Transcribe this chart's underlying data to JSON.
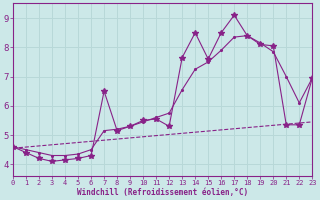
{
  "xlabel": "Windchill (Refroidissement éolien,°C)",
  "bg_color": "#cce8e8",
  "grid_color": "#aacccc",
  "line_color": "#882288",
  "xlim": [
    0,
    23
  ],
  "ylim": [
    3.6,
    9.5
  ],
  "xticks": [
    0,
    1,
    2,
    3,
    4,
    5,
    6,
    7,
    8,
    9,
    10,
    11,
    12,
    13,
    14,
    15,
    16,
    17,
    18,
    19,
    20,
    21,
    22,
    23
  ],
  "yticks": [
    4,
    5,
    6,
    7,
    8,
    9
  ],
  "hours": [
    0,
    1,
    2,
    3,
    4,
    5,
    6,
    7,
    8,
    9,
    10,
    11,
    12,
    13,
    14,
    15,
    16,
    17,
    18,
    19,
    20,
    21,
    22,
    23
  ],
  "jagged_line": [
    4.6,
    4.4,
    4.2,
    4.1,
    4.15,
    4.2,
    4.3,
    6.5,
    5.15,
    5.3,
    5.5,
    5.55,
    5.3,
    7.65,
    8.5,
    7.6,
    8.5,
    9.1,
    8.4,
    8.1,
    8.05,
    5.35,
    5.35,
    6.95
  ],
  "smooth_line": [
    4.6,
    4.5,
    4.4,
    4.3,
    4.3,
    4.35,
    4.5,
    5.15,
    5.2,
    5.3,
    5.45,
    5.6,
    5.75,
    6.55,
    7.25,
    7.5,
    7.9,
    8.35,
    8.4,
    8.15,
    7.85,
    7.0,
    6.1,
    6.95
  ],
  "trend_line_x": [
    0,
    23
  ],
  "trend_line_y": [
    4.55,
    5.45
  ]
}
